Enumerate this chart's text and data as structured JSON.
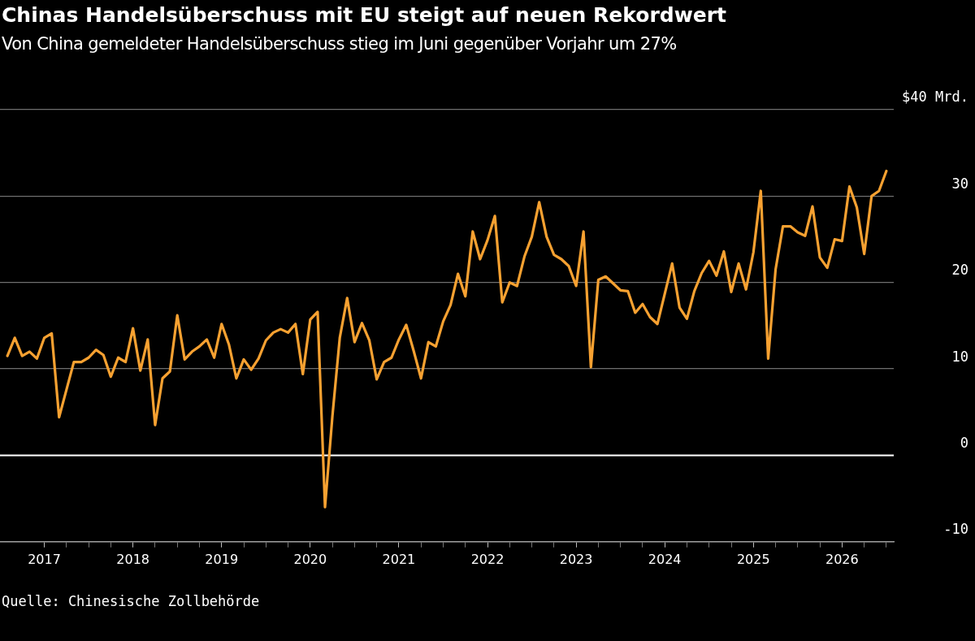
{
  "chart_data": {
    "type": "line",
    "title": "Chinas Handelsüberschuss mit EU steigt auf neuen Rekordwert",
    "subtitle": "Von China gemeldeter Handelsüberschuss stieg im Juni gegenüber Vorjahr um 27%",
    "annotations": [
      "Quelle: Chinesische Zollbehörde"
    ],
    "x": [
      "2016-08",
      "2016-09",
      "2016-10",
      "2016-11",
      "2016-12",
      "2017-01",
      "2017-02",
      "2017-03",
      "2017-04",
      "2017-05",
      "2017-06",
      "2017-07",
      "2017-08",
      "2017-09",
      "2017-10",
      "2017-11",
      "2017-12",
      "2018-01",
      "2018-02",
      "2018-03",
      "2018-04",
      "2018-05",
      "2018-06",
      "2018-07",
      "2018-08",
      "2018-09",
      "2018-10",
      "2018-11",
      "2018-12",
      "2019-01",
      "2019-02",
      "2019-03",
      "2019-04",
      "2019-05",
      "2019-06",
      "2019-07",
      "2019-08",
      "2019-09",
      "2019-10",
      "2019-11",
      "2019-12",
      "2020-01",
      "2020-02",
      "2020-03",
      "2020-04",
      "2020-05",
      "2020-06",
      "2020-07",
      "2020-08",
      "2020-09",
      "2020-10",
      "2020-11",
      "2020-12",
      "2021-01",
      "2021-02",
      "2021-03",
      "2021-04",
      "2021-05",
      "2021-06",
      "2021-07",
      "2021-08",
      "2021-09",
      "2021-10",
      "2021-11",
      "2021-12",
      "2022-01",
      "2022-02",
      "2022-03",
      "2022-04",
      "2022-05",
      "2022-06",
      "2022-07",
      "2022-08",
      "2022-09",
      "2022-10",
      "2022-11",
      "2022-12",
      "2023-01",
      "2023-02",
      "2023-03",
      "2023-04",
      "2023-05",
      "2023-06",
      "2023-07",
      "2023-08",
      "2023-09",
      "2023-10",
      "2023-11",
      "2023-12",
      "2024-01",
      "2024-02",
      "2024-03",
      "2024-04",
      "2024-05",
      "2024-06",
      "2024-07",
      "2024-08",
      "2024-09",
      "2024-10",
      "2024-11",
      "2024-12",
      "2025-01",
      "2025-02",
      "2025-03",
      "2025-04",
      "2025-05",
      "2025-06",
      "2025-07",
      "2025-08",
      "2025-09",
      "2025-10",
      "2025-11",
      "2025-12",
      "2026-01",
      "2026-02",
      "2026-03",
      "2026-04",
      "2026-05",
      "2026-06",
      "2026-07"
    ],
    "series": [
      {
        "color": "#f7a131",
        "values": [
          11.5,
          13.6,
          11.5,
          12.0,
          11.2,
          13.6,
          14.1,
          4.4,
          7.6,
          10.8,
          10.8,
          11.3,
          12.2,
          11.6,
          9.1,
          11.3,
          10.8,
          14.7,
          9.8,
          13.4,
          3.5,
          8.9,
          9.7,
          16.2,
          11.1,
          12.0,
          12.6,
          13.4,
          11.3,
          15.2,
          12.8,
          8.9,
          11.1,
          9.9,
          11.2,
          13.3,
          14.2,
          14.6,
          14.2,
          15.2,
          9.4,
          15.7,
          16.6,
          -6.0,
          4.5,
          13.6,
          18.2,
          13.1,
          15.3,
          13.3,
          8.8,
          10.8,
          11.3,
          13.4,
          15.1,
          12.1,
          8.9,
          13.1,
          12.6,
          15.5,
          17.4,
          21.0,
          18.4,
          25.9,
          22.7,
          24.9,
          27.7,
          17.7,
          20.0,
          19.6,
          23.0,
          25.3,
          29.3,
          25.3,
          23.2,
          22.7,
          21.9,
          19.6,
          25.9,
          10.2,
          20.3,
          20.7,
          19.9,
          19.1,
          19.0,
          16.5,
          17.5,
          16.0,
          15.2,
          18.7,
          22.2,
          17.1,
          15.8,
          19.0,
          21.1,
          22.5,
          20.8,
          23.6,
          18.9,
          22.2,
          19.2,
          23.5,
          30.6,
          11.2,
          21.5,
          26.5,
          26.5,
          25.8,
          25.4,
          28.8,
          22.9,
          21.7,
          25.0,
          24.8,
          31.1,
          28.7,
          23.3,
          30.0,
          30.6,
          32.9
        ]
      }
    ],
    "xlim": [
      "2016-07",
      "2026-08"
    ],
    "xticks": [
      {
        "value": "2017-01",
        "label": "2017"
      },
      {
        "value": "2017-04",
        "label": null
      },
      {
        "value": "2017-07",
        "label": null
      },
      {
        "value": "2017-10",
        "label": null
      },
      {
        "value": "2018-01",
        "label": "2018"
      },
      {
        "value": "2018-04",
        "label": null
      },
      {
        "value": "2018-07",
        "label": null
      },
      {
        "value": "2018-10",
        "label": null
      },
      {
        "value": "2019-01",
        "label": "2019"
      },
      {
        "value": "2019-04",
        "label": null
      },
      {
        "value": "2019-07",
        "label": null
      },
      {
        "value": "2019-10",
        "label": null
      },
      {
        "value": "2020-01",
        "label": "2020"
      },
      {
        "value": "2020-04",
        "label": null
      },
      {
        "value": "2020-07",
        "label": null
      },
      {
        "value": "2020-10",
        "label": null
      },
      {
        "value": "2021-01",
        "label": "2021"
      },
      {
        "value": "2021-04",
        "label": null
      },
      {
        "value": "2021-07",
        "label": null
      },
      {
        "value": "2021-10",
        "label": null
      },
      {
        "value": "2022-01",
        "label": "2022"
      },
      {
        "value": "2022-04",
        "label": null
      },
      {
        "value": "2022-07",
        "label": null
      },
      {
        "value": "2022-10",
        "label": null
      },
      {
        "value": "2023-01",
        "label": "2023"
      },
      {
        "value": "2023-04",
        "label": null
      },
      {
        "value": "2023-07",
        "label": null
      },
      {
        "value": "2023-10",
        "label": null
      },
      {
        "value": "2024-01",
        "label": "2024"
      },
      {
        "value": "2024-04",
        "label": null
      },
      {
        "value": "2024-07",
        "label": null
      },
      {
        "value": "2024-10",
        "label": null
      },
      {
        "value": "2025-01",
        "label": "2025"
      },
      {
        "value": "2025-04",
        "label": null
      },
      {
        "value": "2025-07",
        "label": null
      },
      {
        "value": "2025-10",
        "label": null
      },
      {
        "value": "2026-01",
        "label": "2026"
      },
      {
        "value": "2026-04",
        "label": null
      },
      {
        "value": "2026-07",
        "label": null
      }
    ],
    "ylim": [
      -10,
      40
    ],
    "yticks": [
      -10,
      0,
      10,
      20,
      30,
      {
        "value": 40,
        "label": "$40 Mrd."
      }
    ],
    "ref_lines": [
      {
        "axis": "y",
        "value": 0,
        "color": "#ffffff"
      }
    ],
    "grid": "y",
    "legend": false,
    "marker": "none",
    "line_style": "solid"
  }
}
